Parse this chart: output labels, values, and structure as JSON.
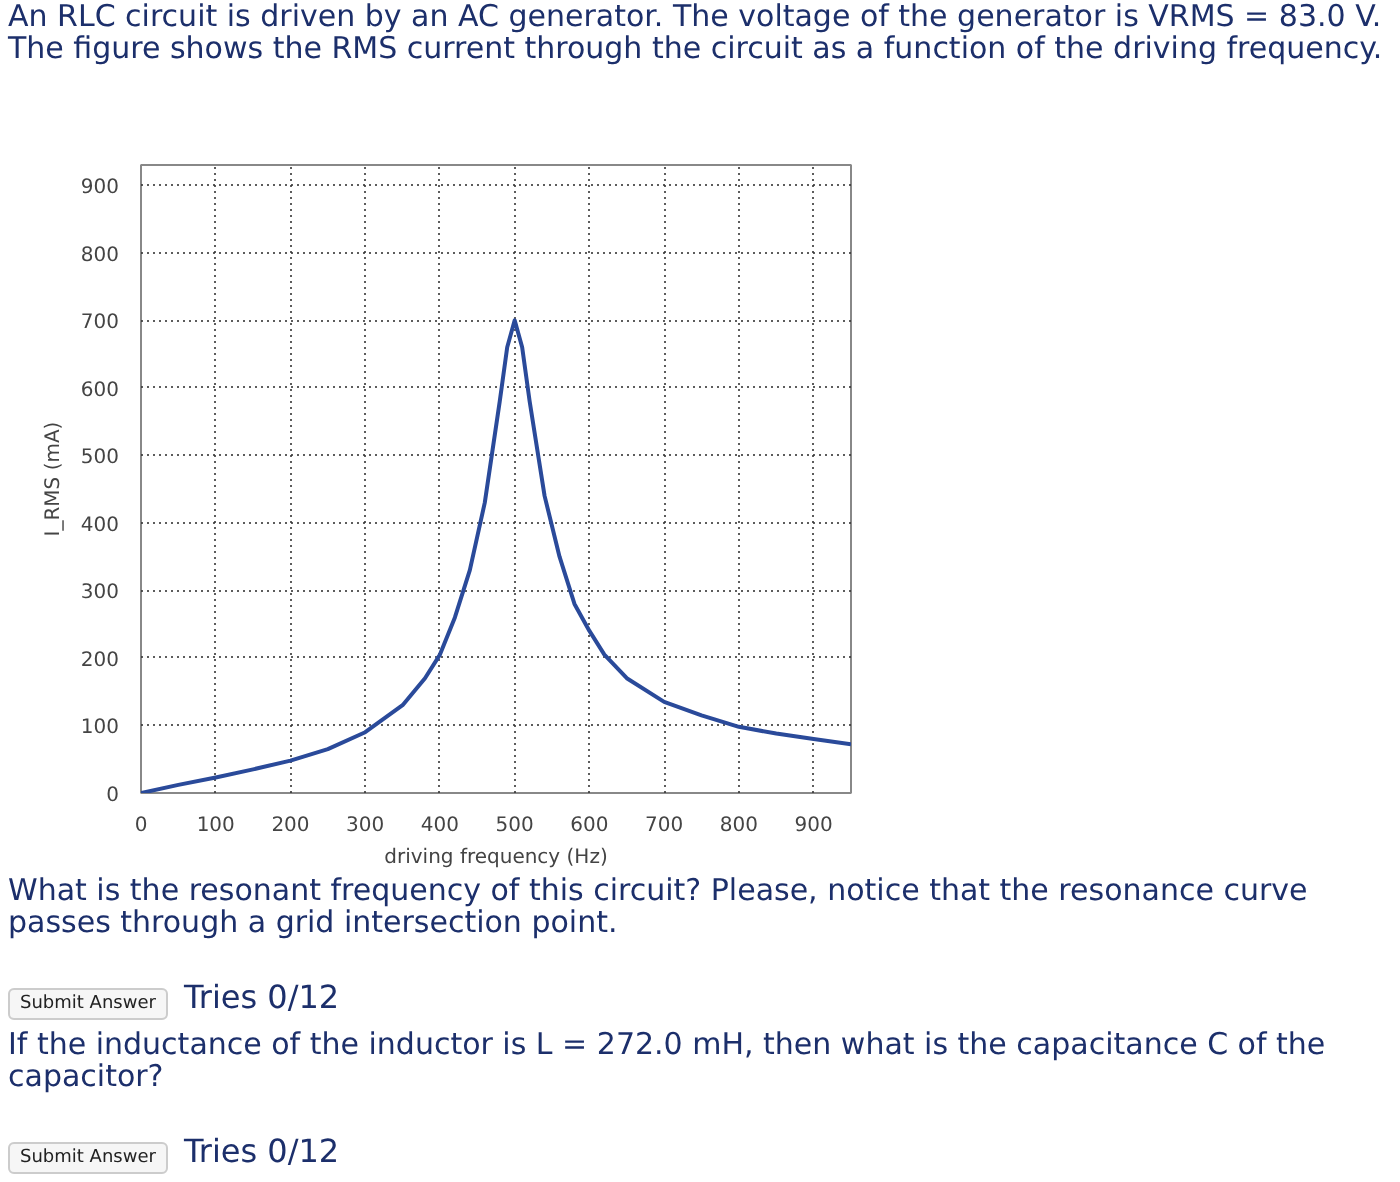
{
  "chart_data": {
    "type": "line",
    "title": "An RLC circuit is driven by an AC generator. The voltage of the generator is VRMS = 83.0 V. The figure shows the RMS current through the circuit as a function of the driving frequency.",
    "xlabel": "driving frequency (Hz)",
    "ylabel": "I_RMS (mA)",
    "x": [
      0,
      50,
      100,
      150,
      200,
      250,
      300,
      350,
      380,
      400,
      420,
      440,
      460,
      480,
      490,
      500,
      510,
      520,
      540,
      560,
      580,
      600,
      620,
      650,
      700,
      750,
      800,
      850,
      900,
      950
    ],
    "series": [
      {
        "color": "#2a4a9a",
        "values": [
          0,
          12,
          23,
          35,
          48,
          65,
          90,
          130,
          170,
          205,
          260,
          330,
          430,
          580,
          660,
          700,
          660,
          580,
          440,
          350,
          280,
          240,
          205,
          170,
          135,
          115,
          98,
          88,
          80,
          72
        ]
      }
    ],
    "xlim": [
      0,
      950
    ],
    "ylim": [
      0,
      930
    ],
    "xticks": [
      0,
      100,
      200,
      300,
      400,
      500,
      600,
      700,
      800,
      900
    ],
    "yticks": [
      0,
      100,
      200,
      300,
      400,
      500,
      600,
      700,
      800,
      900
    ],
    "grid": true,
    "marker": "none",
    "line_style": "solid",
    "annotations": [
      "What is the resonant frequency of this circuit? Please, notice that the resonance curve passes through a grid intersection point.",
      "Submit Answer",
      "Tries 0/12",
      "If the inductance of the inductor is L = 272.0 mH, then what is the capacitance C of the capacitor?",
      "Submit Answer",
      "Tries 0/12"
    ]
  }
}
